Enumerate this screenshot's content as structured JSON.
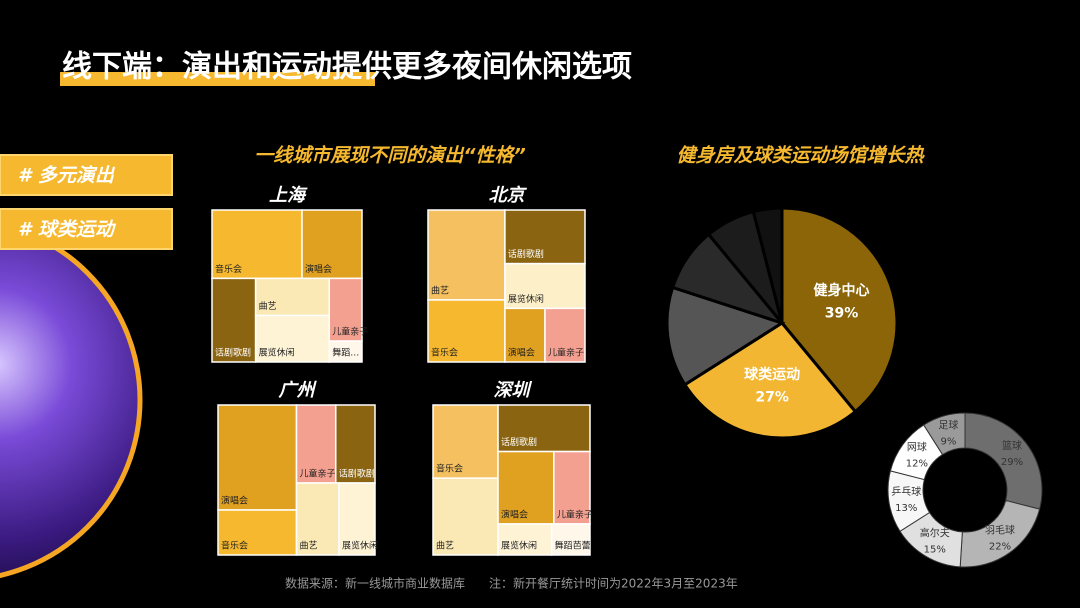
{
  "title": "线下端：演出和运动提供更多夜间休闲选项",
  "tags": [
    "# 多元演出",
    "# 球类运动"
  ],
  "section_title": "一线城市展现不同的演出“性格”",
  "source": "数据来源：新一线城市商业数据库　　注：新开餐厅统计时间为2022年3月至2023年",
  "chart_data": [
    {
      "type": "treemap",
      "title": "上海",
      "categories": [
        "音乐会",
        "演唱会",
        "话剧歌剧",
        "曲艺",
        "展览休闲",
        "儿童亲子",
        "舞蹈…"
      ],
      "values": [
        27,
        18,
        16,
        12,
        15,
        9,
        3
      ],
      "colors": [
        "#f5b82e",
        "#e0a020",
        "#8b6411",
        "#fbe9b5",
        "#fff3d6",
        "#f4a090",
        "#fff8ea"
      ]
    },
    {
      "type": "treemap",
      "title": "北京",
      "categories": [
        "曲艺",
        "音乐会",
        "话剧歌剧",
        "展览休闲",
        "演唱会",
        "儿童亲子"
      ],
      "values": [
        29,
        20,
        18,
        15,
        9,
        9
      ],
      "colors": [
        "#f5c060",
        "#f5b82e",
        "#8b6411",
        "#fdf0c8",
        "#e0a020",
        "#f4a090"
      ]
    },
    {
      "type": "treemap",
      "title": "广州",
      "categories": [
        "演唱会",
        "音乐会",
        "儿童亲子",
        "话剧歌剧",
        "曲艺",
        "展览休闲"
      ],
      "values": [
        35,
        15,
        13,
        13,
        13,
        11
      ],
      "colors": [
        "#e0a020",
        "#f5b82e",
        "#f4a090",
        "#8b6411",
        "#fbe9b5",
        "#fff3d6"
      ]
    },
    {
      "type": "treemap",
      "title": "深圳",
      "categories": [
        "音乐会",
        "曲艺",
        "话剧歌剧",
        "演唱会",
        "儿童亲子",
        "展览休闲",
        "舞蹈芭蕾"
      ],
      "values": [
        20,
        21,
        18,
        17,
        11,
        7,
        5
      ],
      "colors": [
        "#f5c060",
        "#fbe9b5",
        "#8b6411",
        "#e0a020",
        "#f4a090",
        "#fff3d6",
        "#fff8ea"
      ]
    },
    {
      "type": "pie",
      "title": "健身房及球类运动场馆增长热",
      "categories": [
        "健身中心",
        "球类运动",
        null,
        null,
        null,
        null
      ],
      "values": [
        39,
        27,
        14,
        9,
        7,
        4
      ],
      "value_labels": [
        "39%",
        "27%",
        null,
        null,
        null,
        null
      ],
      "colors": [
        "#8b6508",
        "#f2b632",
        "#555555",
        "#2a2a2a",
        "#1c1c1c",
        "#111111"
      ]
    },
    {
      "type": "donut",
      "categories": [
        "篮球",
        "羽毛球",
        "高尔夫",
        "乒乓球",
        "网球",
        "足球"
      ],
      "values": [
        29,
        22,
        15,
        13,
        12,
        9
      ],
      "value_labels": [
        "29%",
        "22%",
        "15%",
        "13%",
        "12%",
        "9%"
      ],
      "colors": [
        "#6e6e6e",
        "#b5b5b5",
        "#e0e0e0",
        "#f7f7f7",
        "#ffffff",
        "#9a9a9a"
      ]
    }
  ]
}
